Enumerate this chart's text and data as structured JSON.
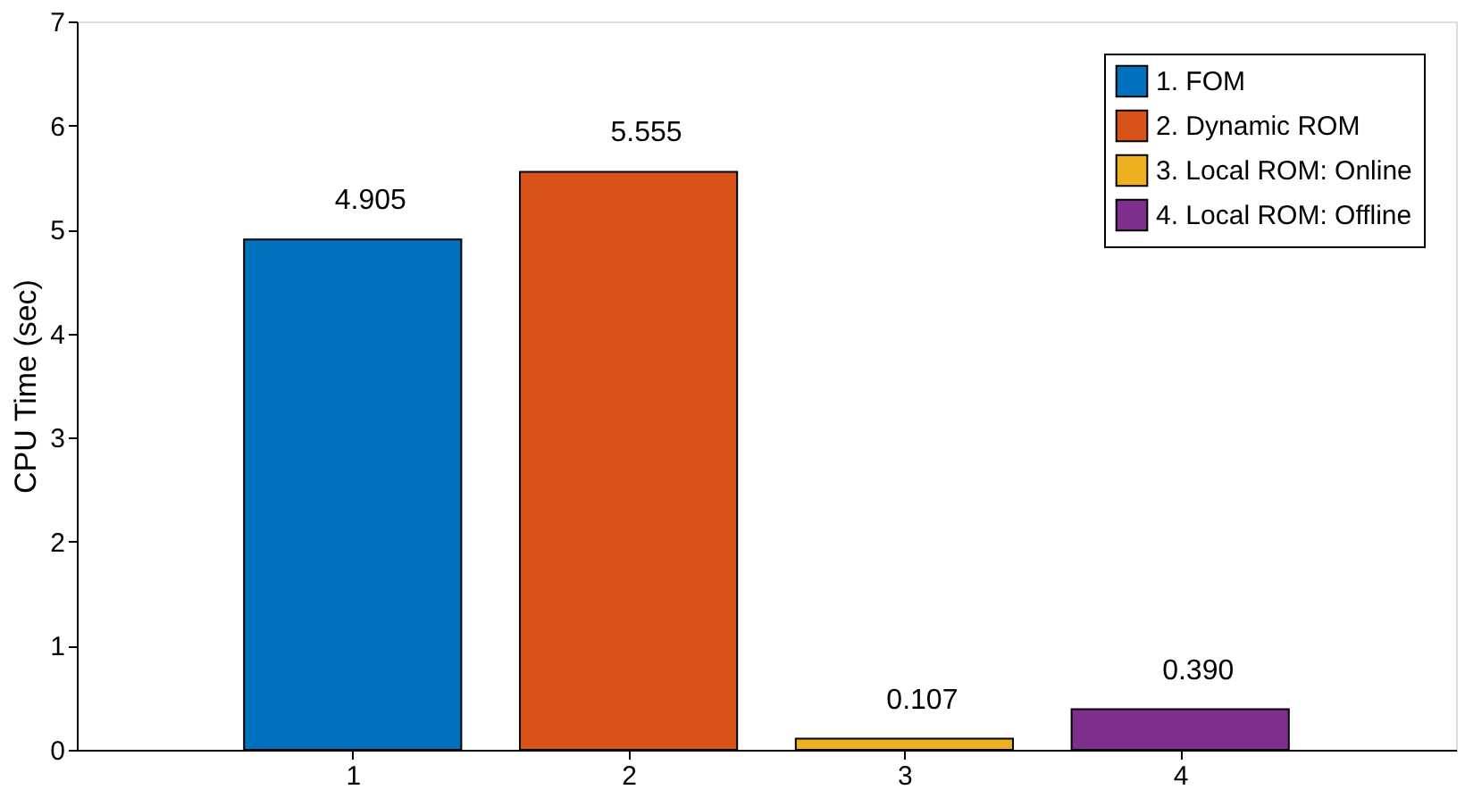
{
  "chart_data": {
    "type": "bar",
    "ylabel": "CPU Time (sec)",
    "xlim": [
      0,
      5
    ],
    "xticks": [
      1,
      2,
      3,
      4
    ],
    "ylim": [
      0,
      7
    ],
    "yticks": [
      0,
      1,
      2,
      3,
      4,
      5,
      6,
      7
    ],
    "grid": false,
    "legend": "top right",
    "series": [
      {
        "name": "1. FOM",
        "color": "#0072bd",
        "x": [
          1
        ],
        "values": [
          4.905
        ],
        "value_labels": [
          "4.905"
        ]
      },
      {
        "name": "2. Dynamic ROM",
        "color": "#d95319",
        "x": [
          2
        ],
        "values": [
          5.555
        ],
        "value_labels": [
          "5.555"
        ]
      },
      {
        "name": "3. Local ROM: Online",
        "color": "#edb120",
        "x": [
          3
        ],
        "values": [
          0.107
        ],
        "value_labels": [
          "0.107"
        ]
      },
      {
        "name": "4. Local ROM: Offline",
        "color": "#7e2f8e",
        "x": [
          4
        ],
        "values": [
          0.39
        ],
        "value_labels": [
          "0.390"
        ]
      }
    ]
  }
}
